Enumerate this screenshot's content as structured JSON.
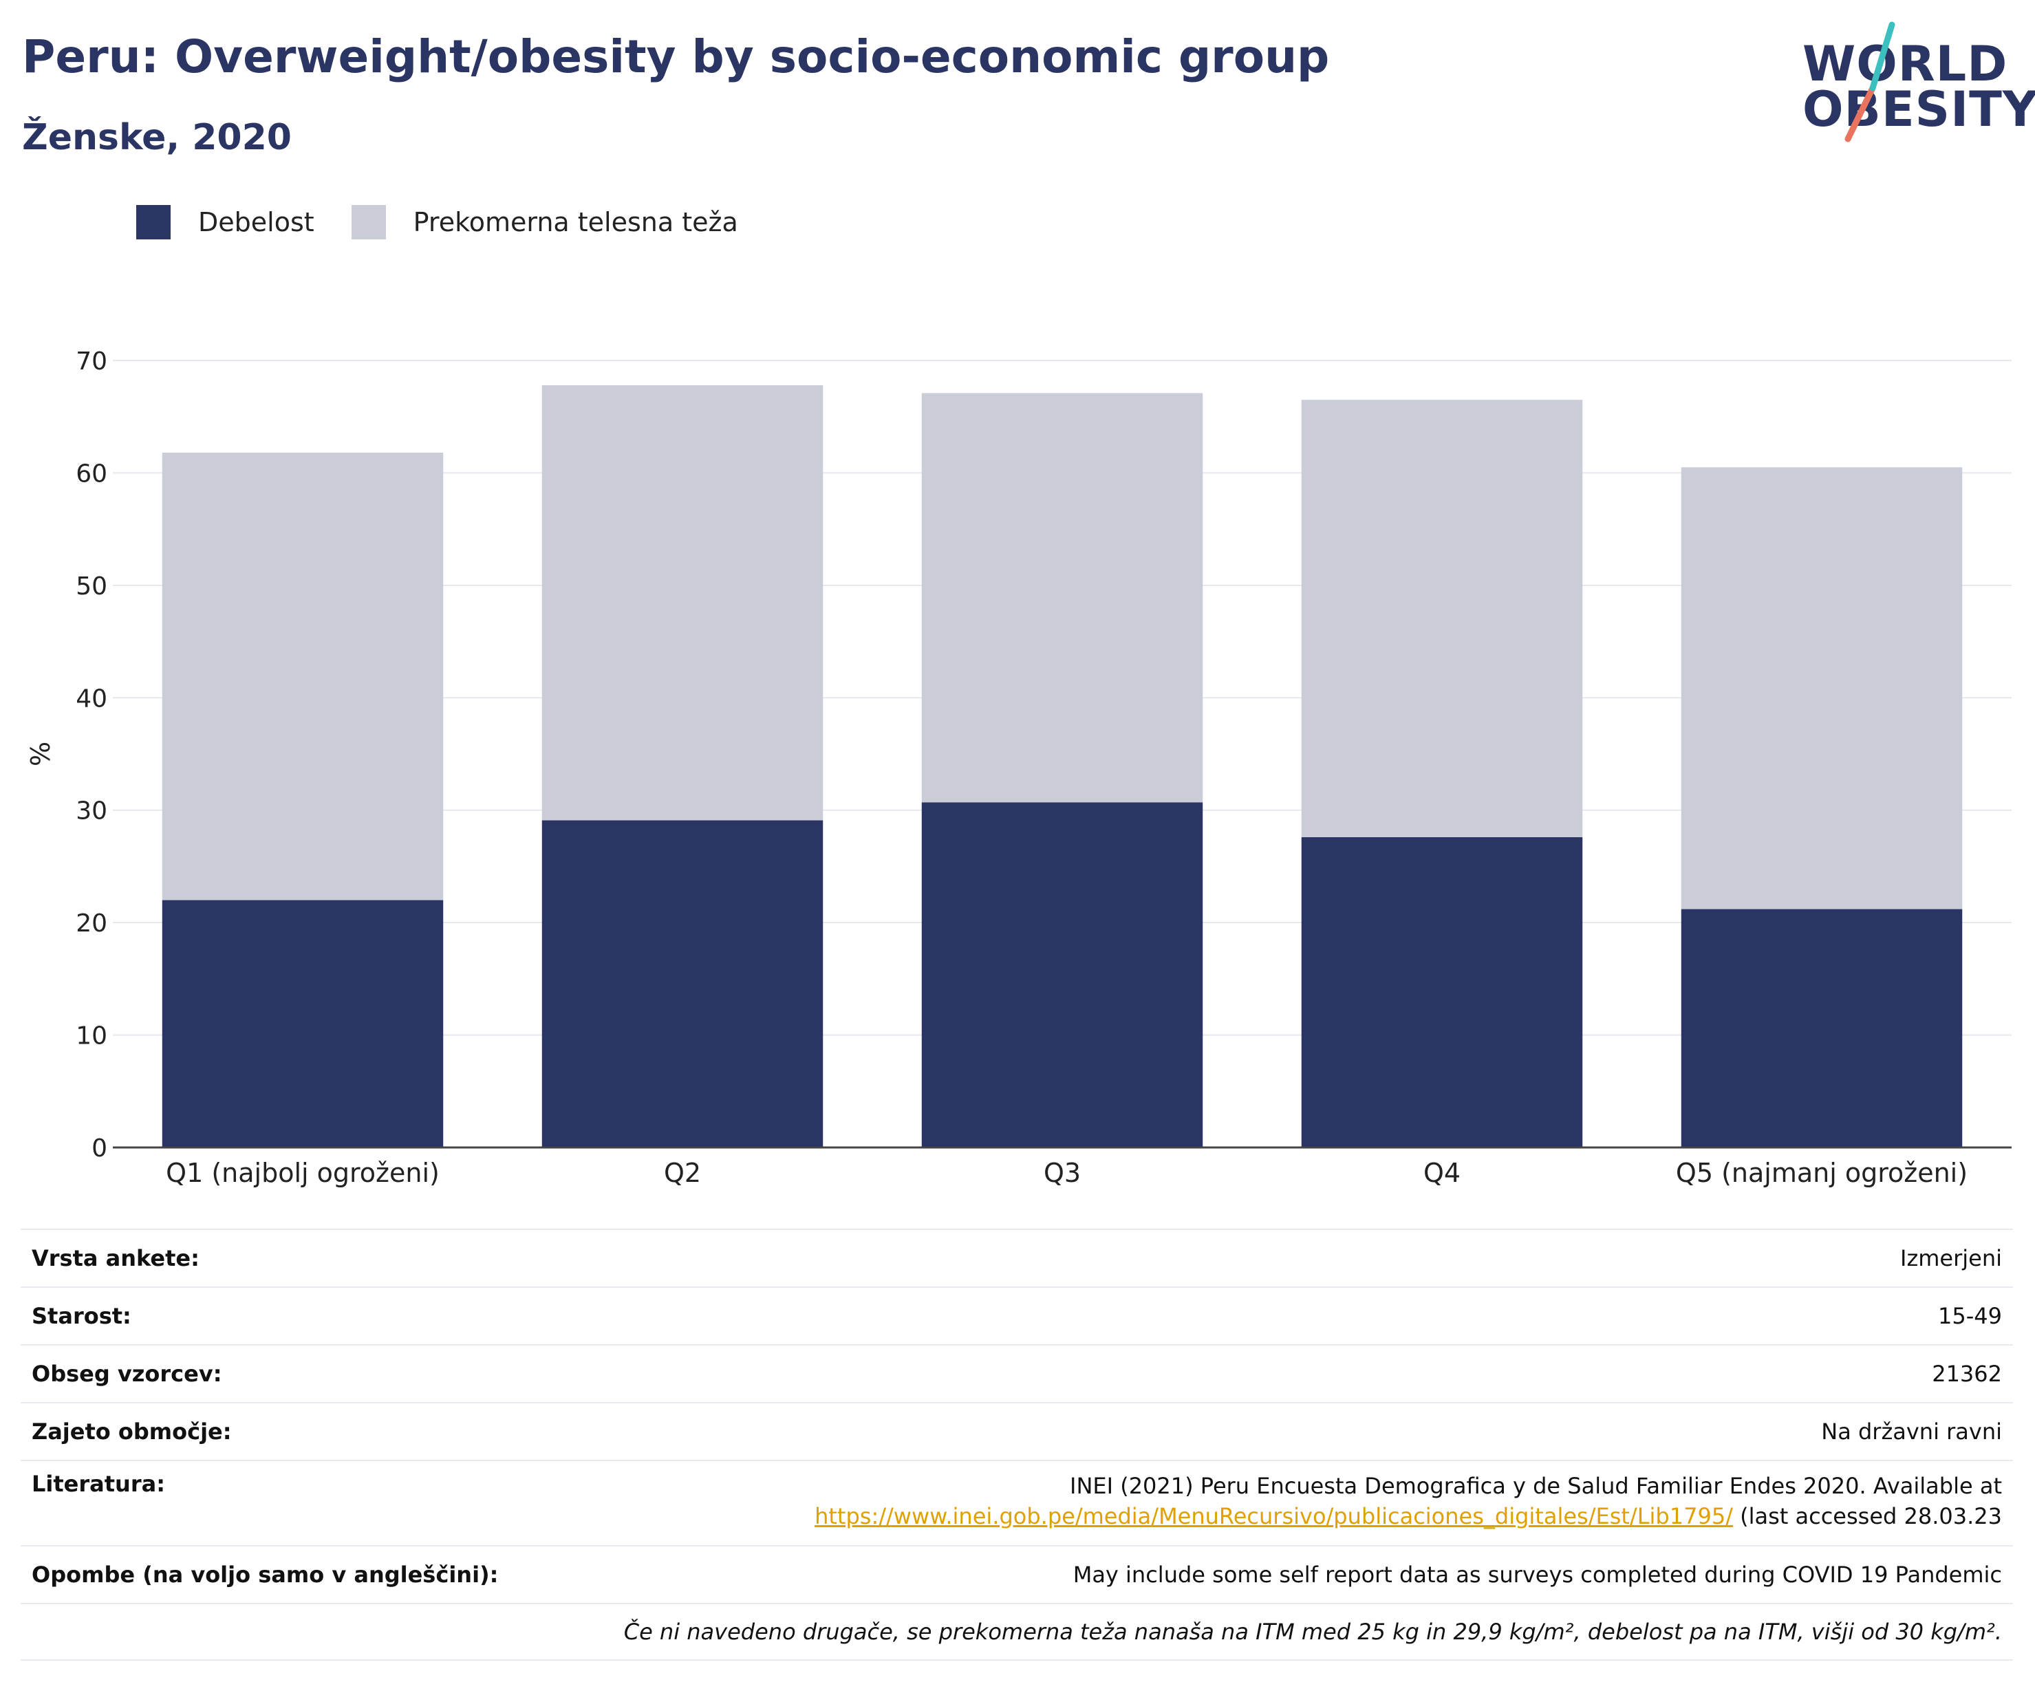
{
  "header": {
    "title": "Peru: Overweight/obesity by socio-economic group",
    "subtitle": "Ženske, 2020"
  },
  "logo": {
    "line1": "WORLD",
    "line2": "OBESITY"
  },
  "colors": {
    "obesity": "#2a3563",
    "overweight": "#cacdd8",
    "title": "#2a3563",
    "logo_teal": "#3cbfbf",
    "logo_coral": "#e8735e",
    "link": "#e0a100"
  },
  "chart_data": {
    "type": "bar",
    "stacked": true,
    "categories": [
      "Q1 (najbolj ogroženi)",
      "Q2",
      "Q3",
      "Q4",
      "Q5 (najmanj ogroženi)"
    ],
    "series": [
      {
        "name": "Debelost",
        "values": [
          22.0,
          29.1,
          30.7,
          27.6,
          21.2
        ]
      },
      {
        "name": "Prekomerna telesna teža",
        "values": [
          39.8,
          38.7,
          36.4,
          38.9,
          39.3
        ]
      }
    ],
    "ylabel": "%",
    "ylim": [
      0,
      70
    ],
    "yticks": [
      "0",
      "10",
      "20",
      "30",
      "40",
      "50",
      "60",
      "70"
    ],
    "grid": true,
    "legend": "top-left"
  },
  "info": {
    "survey_type": {
      "label": "Vrsta ankete:",
      "value": "Izmerjeni"
    },
    "age": {
      "label": "Starost:",
      "value": "15-49"
    },
    "sample_size": {
      "label": "Obseg vzorcev:",
      "value": "21362"
    },
    "area": {
      "label": "Zajeto območje:",
      "value": "Na državni ravni"
    },
    "reference": {
      "label": "Literatura:",
      "text1": "INEI (2021) Peru Encuesta Demografica y de Salud Familiar Endes 2020. Available at",
      "link": "https://www.inei.gob.pe/media/MenuRecursivo/publicaciones_digitales/Est/Lib1795/",
      "text2": " (last accessed 28.03.23"
    },
    "notes": {
      "label": "Opombe (na voljo samo v angleščini):",
      "value": "May include some self report data as surveys completed during COVID 19 Pandemic"
    },
    "footnote": "Če ni navedeno drugače, se prekomerna teža nanaša na ITM med 25 kg in 29,9 kg/m², debelost pa na ITM, višji od 30 kg/m²."
  }
}
